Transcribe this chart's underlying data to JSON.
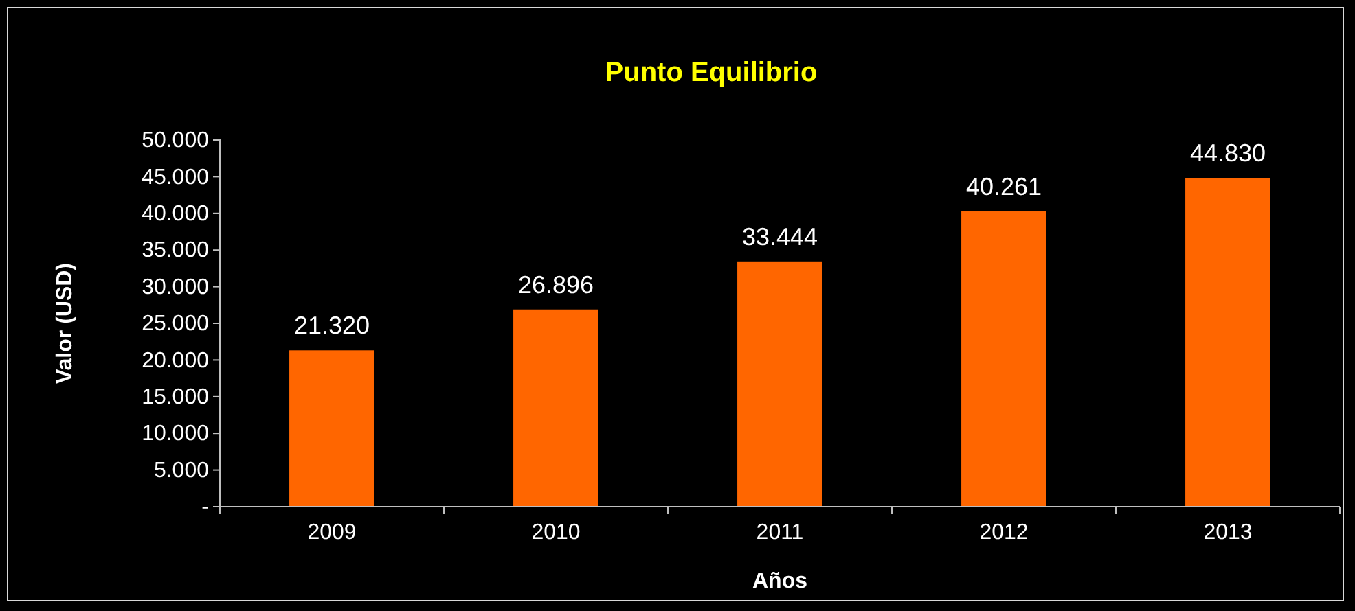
{
  "chart_data": {
    "type": "bar",
    "title": "Punto Equilibrio",
    "xlabel": "Años",
    "ylabel": "Valor (USD)",
    "categories": [
      "2009",
      "2010",
      "2011",
      "2012",
      "2013"
    ],
    "values": [
      21320,
      26896,
      33444,
      40261,
      44830
    ],
    "value_labels": [
      "21.320",
      "26.896",
      "33.444",
      "40.261",
      "44.830"
    ],
    "color": "#ff6600",
    "ylim": [
      0,
      50000
    ],
    "yticks": [
      {
        "value": 0,
        "label": "-"
      },
      {
        "value": 5000,
        "label": "5.000"
      },
      {
        "value": 10000,
        "label": "10.000"
      },
      {
        "value": 15000,
        "label": "15.000"
      },
      {
        "value": 20000,
        "label": "20.000"
      },
      {
        "value": 25000,
        "label": "25.000"
      },
      {
        "value": 30000,
        "label": "30.000"
      },
      {
        "value": 35000,
        "label": "35.000"
      },
      {
        "value": 40000,
        "label": "40.000"
      },
      {
        "value": 45000,
        "label": "45.000"
      },
      {
        "value": 50000,
        "label": "50.000"
      }
    ],
    "grid": false
  }
}
